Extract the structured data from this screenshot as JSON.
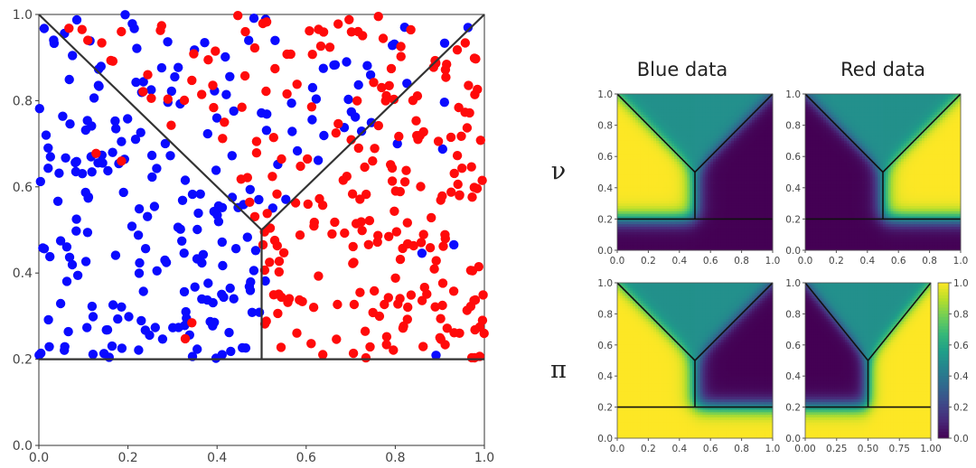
{
  "colors": {
    "blue": "#0a0aff",
    "red": "#ff0a0a",
    "boundary": "#333333",
    "viridis_low": "#440154",
    "viridis_mid": "#21918c",
    "viridis_high": "#fde725"
  },
  "chart_data": [
    {
      "id": "scatter",
      "type": "scatter",
      "xlim": [
        0,
        1
      ],
      "ylim": [
        0,
        1
      ],
      "xticks": [
        "0.0",
        "0.2",
        "0.4",
        "0.6",
        "0.8",
        "1.0"
      ],
      "yticks": [
        "0.0",
        "0.2",
        "0.4",
        "0.6",
        "0.8",
        "1.0"
      ],
      "series": [
        {
          "color": "blue",
          "n_points": 240,
          "region": "left of the V and above y=0.2, x < 0.5"
        },
        {
          "color": "red",
          "n_points": 260,
          "region": "right of the V and above y=0.2, x > 0.5"
        }
      ],
      "boundaries": [
        {
          "x": [
            0,
            0.5
          ],
          "y": [
            1,
            0.5
          ]
        },
        {
          "x": [
            0.5,
            1
          ],
          "y": [
            0.5,
            1
          ]
        },
        {
          "x": [
            0.5,
            0.5
          ],
          "y": [
            0.5,
            0.2
          ]
        },
        {
          "x": [
            0,
            1
          ],
          "y": [
            0.2,
            0.2
          ]
        }
      ]
    },
    {
      "id": "heatmaps",
      "type": "heatmap",
      "column_titles": [
        "Blue data",
        "Red data"
      ],
      "row_labels": [
        "ν",
        "π"
      ],
      "xlim": [
        0,
        1
      ],
      "ylim": [
        0,
        1
      ],
      "ticks": [
        "0.0",
        "0.2",
        "0.4",
        "0.6",
        "0.8",
        "1.0"
      ],
      "ticks_alt_x": [
        "0.00",
        "0.25",
        "0.50",
        "0.75",
        "1.00"
      ],
      "colorbar": {
        "range": [
          0,
          1
        ],
        "ticks": [
          "0.0",
          "0.2",
          "0.4",
          "0.6",
          "0.8",
          "1.0"
        ],
        "colormap": "viridis"
      },
      "panels": [
        {
          "row": 0,
          "col": 0,
          "regions": {
            "top_wedge": 0.5,
            "left": 1.0,
            "right": 0.0,
            "bottom": 0.0
          }
        },
        {
          "row": 0,
          "col": 1,
          "regions": {
            "top_wedge": 0.5,
            "left": 0.0,
            "right": 1.0,
            "bottom": 0.0
          }
        },
        {
          "row": 1,
          "col": 0,
          "regions": {
            "top_wedge": 0.5,
            "left": 1.0,
            "right": 0.0,
            "bottom": 1.0
          }
        },
        {
          "row": 1,
          "col": 1,
          "regions": {
            "top_wedge": 0.5,
            "left": 0.0,
            "right": 1.0,
            "bottom": 1.0
          }
        }
      ]
    }
  ]
}
